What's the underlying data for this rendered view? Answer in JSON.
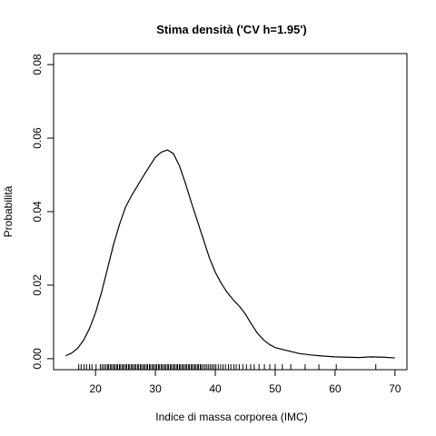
{
  "chart_data": {
    "type": "line",
    "title": "Stima densità ('CV h=1.95')",
    "xlabel": "Indice di massa corporea (IMC)",
    "ylabel": "Probabilità",
    "xlim": [
      13,
      72
    ],
    "ylim": [
      -0.003,
      0.083
    ],
    "x_ticks": [
      20,
      30,
      40,
      50,
      60,
      70
    ],
    "y_ticks": [
      0.0,
      0.02,
      0.04,
      0.06,
      0.08
    ],
    "x_tick_labels": [
      "20",
      "30",
      "40",
      "50",
      "60",
      "70"
    ],
    "y_tick_labels": [
      "0.00",
      "0.02",
      "0.04",
      "0.06",
      "0.08"
    ],
    "grid": false,
    "series": [
      {
        "x": [
          15,
          16,
          17,
          18,
          19,
          20,
          21,
          22,
          23,
          24,
          25,
          26,
          27,
          28,
          29,
          30,
          31,
          32,
          33,
          34,
          35,
          36,
          37,
          38,
          39,
          40,
          41,
          42,
          43,
          44,
          45,
          46,
          47,
          48,
          49,
          50,
          52,
          54,
          56,
          58,
          60,
          62,
          64,
          66,
          68,
          70
        ],
        "y": [
          0.0008,
          0.0015,
          0.0028,
          0.005,
          0.0082,
          0.0125,
          0.018,
          0.0245,
          0.031,
          0.0365,
          0.0412,
          0.0443,
          0.047,
          0.0497,
          0.0523,
          0.0548,
          0.0562,
          0.0568,
          0.0558,
          0.0525,
          0.0478,
          0.0425,
          0.0375,
          0.0325,
          0.0275,
          0.0235,
          0.0205,
          0.018,
          0.016,
          0.0143,
          0.0122,
          0.0095,
          0.007,
          0.0052,
          0.0039,
          0.003,
          0.0022,
          0.0014,
          0.001,
          0.0007,
          0.0005,
          0.0004,
          0.0003,
          0.0005,
          0.0004,
          0.0002
        ]
      }
    ],
    "rug": [
      17.2,
      17.6,
      18.1,
      18.5,
      19.0,
      19.4,
      20.1,
      20.8,
      21.1,
      21.4,
      21.7,
      22.0,
      22.2,
      22.5,
      22.7,
      23.0,
      23.2,
      23.5,
      23.7,
      24.0,
      24.2,
      24.5,
      24.7,
      25.0,
      25.2,
      25.5,
      25.7,
      26.0,
      26.2,
      26.5,
      26.7,
      27.0,
      27.2,
      27.5,
      27.7,
      28.0,
      28.2,
      28.5,
      28.7,
      29.0,
      29.2,
      29.5,
      29.7,
      30.0,
      30.2,
      30.5,
      30.7,
      31.0,
      31.2,
      31.5,
      31.7,
      32.0,
      32.2,
      32.5,
      32.7,
      33.0,
      33.2,
      33.5,
      33.7,
      34.0,
      34.2,
      34.5,
      34.7,
      35.0,
      35.2,
      35.5,
      35.7,
      36.0,
      36.2,
      36.5,
      36.7,
      37.0,
      37.2,
      37.5,
      37.7,
      38.0,
      38.3,
      38.6,
      38.9,
      39.2,
      39.5,
      39.8,
      40.1,
      40.5,
      40.9,
      41.3,
      41.7,
      42.2,
      42.6,
      43.1,
      43.5,
      44.0,
      44.6,
      45.2,
      45.9,
      46.5,
      47.3,
      48.2,
      49.1,
      50.0,
      51.2,
      52.6,
      55.0,
      57.3,
      60.2,
      66.8
    ]
  }
}
